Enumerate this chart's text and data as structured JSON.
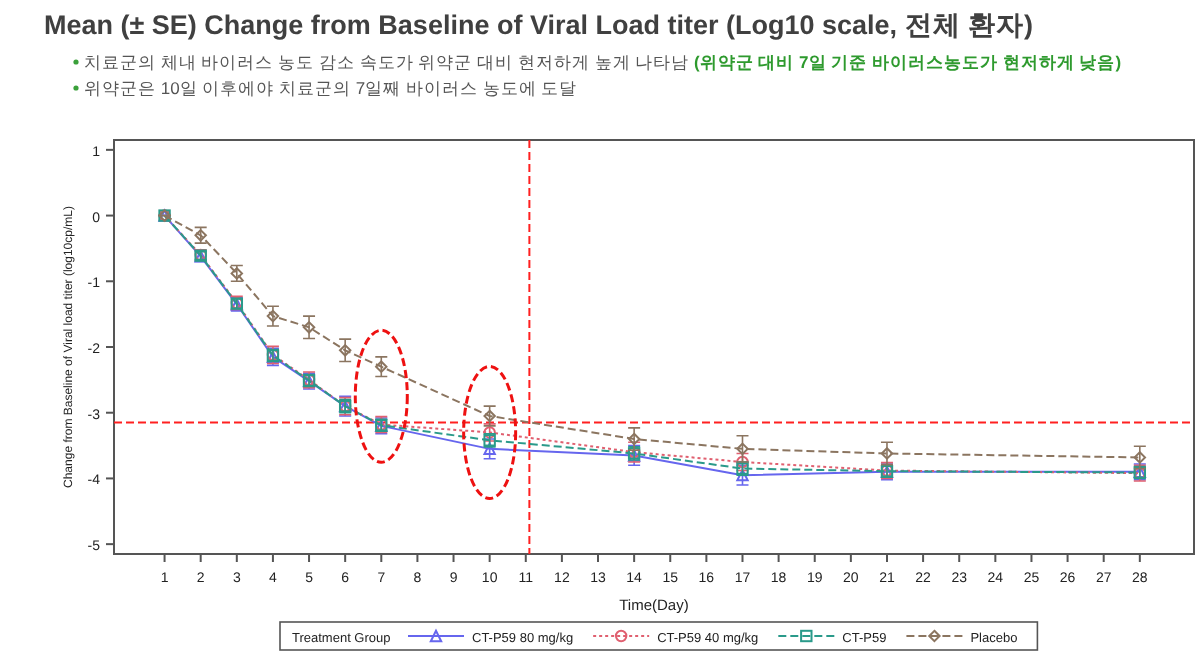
{
  "chart_data": {
    "type": "line",
    "title": "Mean (± SE) Change from Baseline of Viral Load titer (Log10 scale, 전체 환자)",
    "subtitle": "치료군의 체내 바이러스 농도 감소 속도가 위약군 대비 현저하게 높게 나타남",
    "annotations": [
      "(위약군 대비 7일 기준 바이러스농도가 현저하게 낮음)",
      "위약군은 10일 이후에야 치료군의 7일째 바이러스 농도에 도달"
    ],
    "xlabel": "Time(Day)",
    "ylabel": "Change from Baseline of Viral load titer (log10cp/mL)",
    "legend_title": "Treatment Group",
    "legend": "bottom",
    "grid": false,
    "x": [
      1,
      2,
      3,
      4,
      5,
      6,
      7,
      10,
      14,
      17,
      21,
      28
    ],
    "xlim": [
      -0.4,
      29.5
    ],
    "xticks": [
      1,
      2,
      3,
      4,
      5,
      6,
      7,
      8,
      9,
      10,
      11,
      12,
      13,
      14,
      15,
      16,
      17,
      18,
      19,
      20,
      21,
      22,
      23,
      24,
      25,
      26,
      27,
      28
    ],
    "ylim": [
      -5.15,
      1.15
    ],
    "yticks": [
      -5,
      -4,
      -3,
      -2,
      -1,
      0,
      1
    ],
    "series": [
      {
        "name": "CT-P59 80 mg/kg",
        "color": "#6666ee",
        "marker": "triangle",
        "line_style": "solid",
        "values": [
          0,
          -0.62,
          -1.35,
          -2.15,
          -2.52,
          -2.9,
          -3.2,
          -3.55,
          -3.65,
          -3.95,
          -3.9,
          -3.9
        ],
        "errors": [
          0,
          0.08,
          0.1,
          0.13,
          0.12,
          0.15,
          0.12,
          0.15,
          0.15,
          0.15,
          0.12,
          0.12
        ]
      },
      {
        "name": "CT-P59 40 mg/kg",
        "color": "#e06070",
        "marker": "circle",
        "line_style": "dotted",
        "values": [
          0,
          -0.6,
          -1.33,
          -2.12,
          -2.5,
          -2.9,
          -3.18,
          -3.3,
          -3.6,
          -3.75,
          -3.88,
          -3.92
        ],
        "errors": [
          0,
          0.08,
          0.1,
          0.13,
          0.12,
          0.13,
          0.12,
          0.13,
          0.15,
          0.13,
          0.12,
          0.12
        ]
      },
      {
        "name": "CT-P59",
        "color": "#2a9a8a",
        "marker": "square",
        "line_style": "dashed",
        "values": [
          0,
          -0.61,
          -1.34,
          -2.13,
          -2.51,
          -2.9,
          -3.19,
          -3.42,
          -3.62,
          -3.85,
          -3.89,
          -3.91
        ],
        "errors": [
          0,
          0.06,
          0.07,
          0.09,
          0.09,
          0.1,
          0.09,
          0.1,
          0.1,
          0.1,
          0.09,
          0.09
        ]
      },
      {
        "name": "Placebo",
        "color": "#8b7560",
        "marker": "diamond",
        "line_style": "dashed",
        "values": [
          0,
          -0.3,
          -0.88,
          -1.53,
          -1.7,
          -2.05,
          -2.3,
          -3.05,
          -3.4,
          -3.55,
          -3.62,
          -3.68
        ],
        "errors": [
          0,
          0.12,
          0.12,
          0.15,
          0.17,
          0.17,
          0.15,
          0.15,
          0.17,
          0.2,
          0.17,
          0.17
        ]
      }
    ],
    "ref_lines": [
      {
        "axis": "x",
        "value": 11.1,
        "color": "#ff2020",
        "line_style": "dashed"
      },
      {
        "axis": "y",
        "value": -3.15,
        "color": "#ff2020",
        "line_style": "dashed"
      }
    ]
  }
}
